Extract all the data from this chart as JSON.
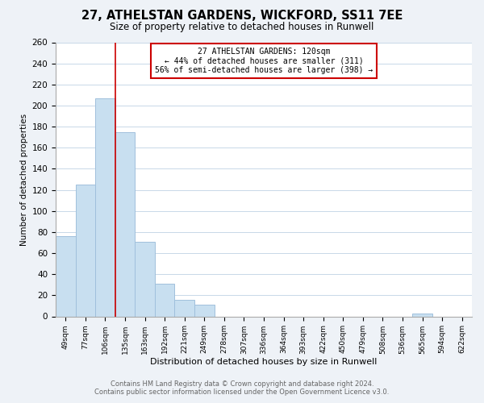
{
  "title": "27, ATHELSTAN GARDENS, WICKFORD, SS11 7EE",
  "subtitle": "Size of property relative to detached houses in Runwell",
  "xlabel": "Distribution of detached houses by size in Runwell",
  "ylabel": "Number of detached properties",
  "bar_labels": [
    "49sqm",
    "77sqm",
    "106sqm",
    "135sqm",
    "163sqm",
    "192sqm",
    "221sqm",
    "249sqm",
    "278sqm",
    "307sqm",
    "336sqm",
    "364sqm",
    "393sqm",
    "422sqm",
    "450sqm",
    "479sqm",
    "508sqm",
    "536sqm",
    "565sqm",
    "594sqm",
    "622sqm"
  ],
  "bar_values": [
    76,
    125,
    207,
    175,
    71,
    31,
    16,
    11,
    0,
    0,
    0,
    0,
    0,
    0,
    0,
    0,
    0,
    0,
    3,
    0,
    0
  ],
  "bar_color": "#c8dff0",
  "bar_edge_color": "#a0c0dc",
  "vline_x": 2.5,
  "vline_color": "#cc0000",
  "annotation_box_text": "27 ATHELSTAN GARDENS: 120sqm\n← 44% of detached houses are smaller (311)\n56% of semi-detached houses are larger (398) →",
  "annotation_box_color": "#ffffff",
  "annotation_box_edge_color": "#cc0000",
  "ylim": [
    0,
    260
  ],
  "yticks": [
    0,
    20,
    40,
    60,
    80,
    100,
    120,
    140,
    160,
    180,
    200,
    220,
    240,
    260
  ],
  "footer_line1": "Contains HM Land Registry data © Crown copyright and database right 2024.",
  "footer_line2": "Contains public sector information licensed under the Open Government Licence v3.0.",
  "bg_color": "#eef2f7",
  "plot_bg_color": "#ffffff",
  "grid_color": "#c8d8e8"
}
